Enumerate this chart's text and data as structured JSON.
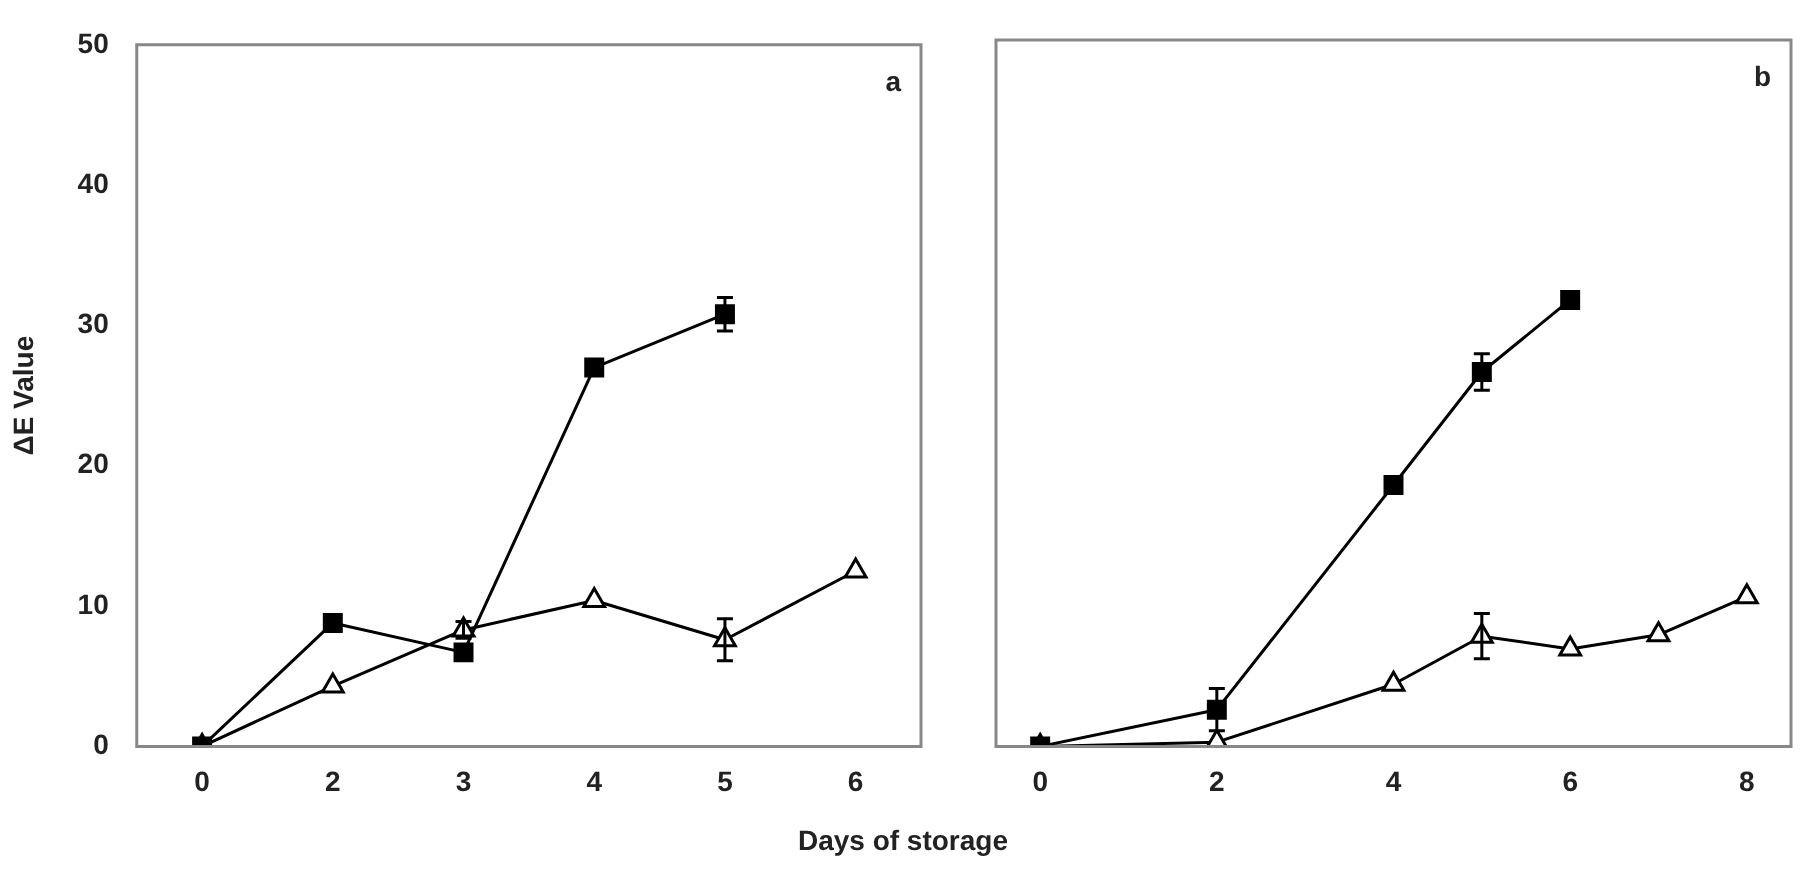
{
  "chart_data": [
    {
      "type": "line",
      "ylabel": "ΔE Value",
      "xlabel": "Days of storage",
      "categories": [
        "0",
        "2",
        "3",
        "4",
        "5",
        "6"
      ],
      "ylim": [
        0,
        50
      ],
      "yticks": [
        0,
        10,
        20,
        30,
        40,
        50
      ],
      "grid": false,
      "legend": false,
      "annotations": [
        "a"
      ],
      "series": [
        {
          "color": "#000000",
          "marker": "triangle",
          "values": [
            0,
            4.3,
            8.3,
            10.4,
            7.6,
            12.5
          ],
          "errors": [
            null,
            null,
            0.6,
            null,
            1.5,
            null
          ]
        },
        {
          "color": "#000000",
          "marker": "square",
          "values": [
            0,
            8.8,
            6.7,
            27.0,
            30.8,
            null
          ],
          "errors": [
            null,
            null,
            null,
            null,
            1.2,
            null
          ]
        }
      ]
    },
    {
      "type": "line",
      "xlim": [
        -0.5,
        8.5
      ],
      "xticks": [
        0,
        2,
        4,
        6,
        8
      ],
      "ylim": [
        0,
        50
      ],
      "yticks": [
        0,
        10,
        20,
        30,
        40,
        50
      ],
      "tick_labels": "x",
      "grid": false,
      "legend": false,
      "annotations": [
        "b"
      ],
      "series": [
        {
          "color": "#000000",
          "marker": "triangle",
          "x": [
            0,
            2,
            4,
            5,
            6,
            7,
            8
          ],
          "values": [
            0,
            0.3,
            4.4,
            7.8,
            6.9,
            7.9,
            10.6
          ],
          "errors": [
            null,
            null,
            null,
            1.6,
            null,
            null,
            null
          ]
        },
        {
          "color": "#000000",
          "marker": "square",
          "x": [
            0,
            2,
            4,
            5,
            6
          ],
          "values": [
            0,
            2.6,
            18.5,
            26.5,
            31.6
          ],
          "errors": [
            null,
            1.5,
            null,
            1.3,
            null
          ]
        }
      ]
    }
  ]
}
